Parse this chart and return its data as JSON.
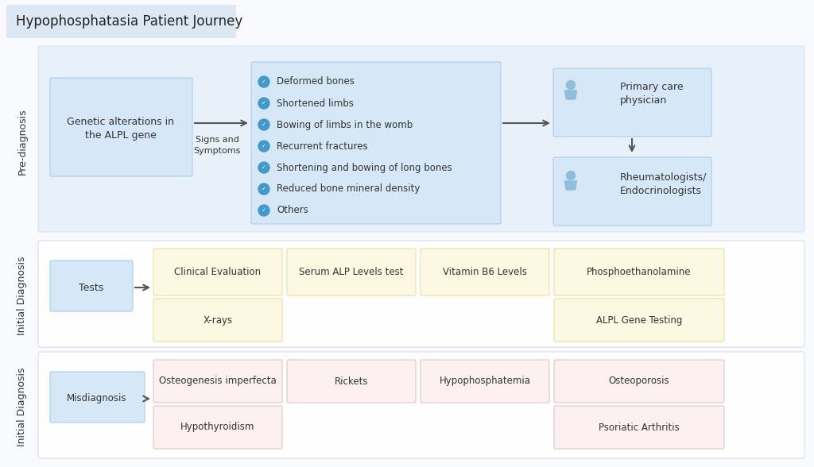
{
  "title": "Hypophosphatasia Patient Journey",
  "title_bg": "#dce9f5",
  "bg_color": "#f8fafd",
  "light_blue_box": "#d6e8f7",
  "light_yellow": "#fdf8e1",
  "misdiag_box_color": "#f5f0f5",
  "arrow_color": "#555555",
  "symptoms": [
    "Deformed bones",
    "Shortened limbs",
    "Bowing of limbs in the womb",
    "Recurrent fractures",
    "Shortening and bowing of long bones",
    "Reduced bone mineral density",
    "Others"
  ],
  "check_color": "#4499cc",
  "text_color": "#333333",
  "section_bg_blue": "#e8f1fa",
  "section_bg_white": "#ffffff"
}
